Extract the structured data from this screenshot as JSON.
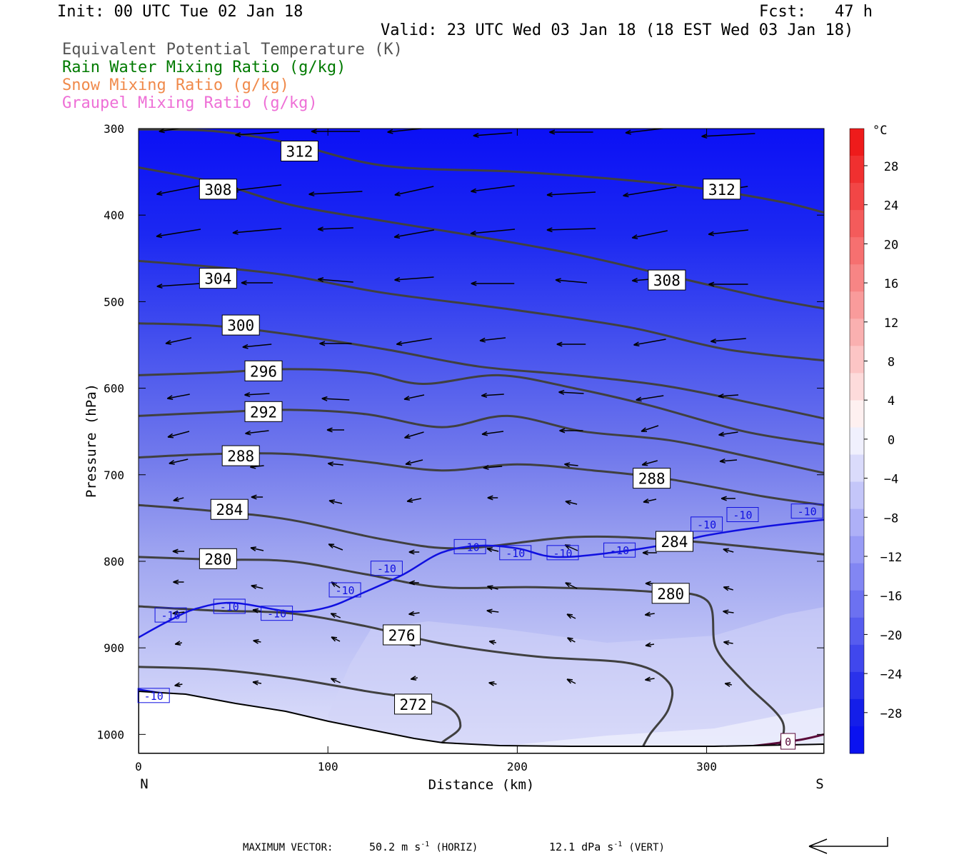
{
  "header": {
    "init": "Init: 00 UTC Tue 02 Jan 18",
    "fcst": "Fcst:   47 h",
    "valid": "Valid: 23 UTC Wed 03 Jan 18 (18 EST Wed 03 Jan 18)"
  },
  "legend": [
    {
      "label": "Equivalent Potential Temperature (K)",
      "color": "#555555"
    },
    {
      "label": "Rain Water Mixing Ratio (g/kg)",
      "color": "#007a00"
    },
    {
      "label": "Snow Mixing Ratio (g/kg)",
      "color": "#f08a4b"
    },
    {
      "label": "Graupel Mixing Ratio (g/kg)",
      "color": "#ee6fd6"
    }
  ],
  "chart_data": {
    "type": "cross-section",
    "xlabel": "Distance (km)",
    "ylabel": "Pressure (hPa)",
    "xlim": [
      0,
      362
    ],
    "ylim": [
      300,
      1022
    ],
    "y_scale": "linear, pressure increasing downward",
    "x_ticks": [
      "0",
      "100",
      "200",
      "300"
    ],
    "y_ticks": [
      "300",
      "400",
      "500",
      "600",
      "700",
      "800",
      "900",
      "1000"
    ],
    "x_end_labels": {
      "left": "N",
      "right": "S"
    },
    "theta_e_contours": [
      {
        "label": "312",
        "points": [
          [
            0,
            301
          ],
          [
            40,
            303
          ],
          [
            80,
            317
          ],
          [
            130,
            343
          ],
          [
            200,
            350
          ],
          [
            260,
            360
          ],
          [
            300,
            370
          ],
          [
            340,
            385
          ],
          [
            362,
            397
          ]
        ],
        "label_at": [
          85,
          326
        ]
      },
      {
        "label": "312b",
        "points": [],
        "label_at": [
          0,
          0
        ]
      },
      {
        "label": "308",
        "points": [
          [
            0,
            345
          ],
          [
            40,
            362
          ],
          [
            80,
            388
          ],
          [
            130,
            407
          ],
          [
            180,
            425
          ],
          [
            230,
            445
          ],
          [
            280,
            470
          ],
          [
            330,
            495
          ],
          [
            362,
            508
          ]
        ],
        "label_at": [
          42,
          370
        ]
      },
      {
        "label": "304",
        "points": [
          [
            0,
            453
          ],
          [
            40,
            460
          ],
          [
            80,
            470
          ],
          [
            130,
            490
          ],
          [
            200,
            510
          ],
          [
            260,
            530
          ],
          [
            310,
            555
          ],
          [
            362,
            568
          ]
        ],
        "label_at": [
          42,
          473
        ]
      },
      {
        "label": "300",
        "points": [
          [
            0,
            525
          ],
          [
            40,
            528
          ],
          [
            80,
            538
          ],
          [
            130,
            555
          ],
          [
            180,
            575
          ],
          [
            230,
            585
          ],
          [
            280,
            598
          ],
          [
            330,
            620
          ],
          [
            362,
            635
          ]
        ],
        "label_at": [
          54,
          527
        ]
      },
      {
        "label": "296",
        "points": [
          [
            0,
            585
          ],
          [
            40,
            582
          ],
          [
            80,
            578
          ],
          [
            120,
            582
          ],
          [
            150,
            595
          ],
          [
            190,
            585
          ],
          [
            230,
            600
          ],
          [
            270,
            620
          ],
          [
            320,
            650
          ],
          [
            362,
            665
          ]
        ],
        "label_at": [
          66,
          580
        ]
      },
      {
        "label": "292",
        "points": [
          [
            0,
            632
          ],
          [
            40,
            628
          ],
          [
            80,
            625
          ],
          [
            120,
            630
          ],
          [
            160,
            645
          ],
          [
            195,
            632
          ],
          [
            235,
            650
          ],
          [
            280,
            660
          ],
          [
            320,
            678
          ],
          [
            362,
            698
          ]
        ],
        "label_at": [
          66,
          627
        ]
      },
      {
        "label": "288",
        "points": [
          [
            0,
            680
          ],
          [
            40,
            676
          ],
          [
            80,
            676
          ],
          [
            120,
            685
          ],
          [
            160,
            695
          ],
          [
            200,
            688
          ],
          [
            240,
            695
          ],
          [
            280,
            705
          ],
          [
            330,
            725
          ],
          [
            362,
            735
          ]
        ],
        "label_at": [
          54,
          678
        ]
      },
      {
        "label": "284",
        "points": [
          [
            0,
            735
          ],
          [
            40,
            742
          ],
          [
            80,
            752
          ],
          [
            130,
            775
          ],
          [
            170,
            785
          ],
          [
            230,
            772
          ],
          [
            280,
            775
          ],
          [
            330,
            785
          ],
          [
            362,
            792
          ]
        ],
        "label_at": [
          48,
          740
        ]
      },
      {
        "label": "280",
        "points": [
          [
            0,
            795
          ],
          [
            40,
            798
          ],
          [
            80,
            800
          ],
          [
            120,
            815
          ],
          [
            160,
            830
          ],
          [
            210,
            830
          ],
          [
            270,
            835
          ],
          [
            300,
            845
          ],
          [
            305,
            900
          ],
          [
            320,
            940
          ],
          [
            340,
            985
          ],
          [
            337,
            1020
          ]
        ],
        "label_at": [
          42,
          797
        ]
      },
      {
        "label": "276",
        "points": [
          [
            0,
            852
          ],
          [
            40,
            857
          ],
          [
            80,
            860
          ],
          [
            120,
            875
          ],
          [
            160,
            895
          ],
          [
            210,
            910
          ],
          [
            260,
            918
          ],
          [
            280,
            940
          ],
          [
            280,
            970
          ],
          [
            270,
            1000
          ],
          [
            265,
            1020
          ]
        ],
        "label_at": [
          139,
          885
        ]
      },
      {
        "label": "272",
        "points": [
          [
            0,
            922
          ],
          [
            40,
            925
          ],
          [
            80,
            935
          ],
          [
            120,
            950
          ],
          [
            160,
            965
          ],
          [
            170,
            990
          ],
          [
            160,
            1010
          ],
          [
            158,
            1020
          ]
        ],
        "label_at": [
          145,
          965
        ]
      }
    ],
    "isotherm_labels": [
      "-10",
      "-10",
      "-10",
      "-10",
      "-10",
      "-10",
      "-10",
      "-10",
      "-10",
      "-10",
      "-10",
      "-10",
      "-10",
      "-10",
      "0"
    ],
    "isotherms": [
      {
        "value": "-10",
        "points": [
          [
            0,
            888
          ],
          [
            15,
            870
          ],
          [
            30,
            855
          ],
          [
            50,
            848
          ],
          [
            80,
            858
          ],
          [
            100,
            853
          ],
          [
            120,
            835
          ],
          [
            140,
            815
          ],
          [
            160,
            790
          ],
          [
            180,
            782
          ],
          [
            200,
            785
          ],
          [
            220,
            795
          ],
          [
            250,
            790
          ],
          [
            280,
            780
          ],
          [
            300,
            770
          ],
          [
            330,
            760
          ],
          [
            362,
            752
          ]
        ]
      },
      {
        "value": "-10",
        "points": [
          [
            0,
            948
          ],
          [
            20,
            955
          ],
          [
            40,
            960
          ],
          [
            57,
            968
          ]
        ]
      },
      {
        "value": "0",
        "points": [
          [
            305,
            1018
          ],
          [
            330,
            1012
          ],
          [
            350,
            1006
          ],
          [
            362,
            1000
          ]
        ]
      }
    ],
    "colorbar": {
      "unit": "°C",
      "tick_labels": [
        "28",
        "24",
        "20",
        "16",
        "12",
        "8",
        "4",
        "0",
        "−4",
        "−8",
        "−12",
        "−16",
        "−20",
        "−24",
        "−28"
      ]
    },
    "footer": {
      "prefix": "MAXIMUM VECTOR:",
      "horiz": "50.2 m s",
      "horiz_suffix": "(HORIZ)",
      "vert": "12.1 dPa s",
      "vert_suffix": "(VERT)",
      "exp": "-1"
    }
  }
}
